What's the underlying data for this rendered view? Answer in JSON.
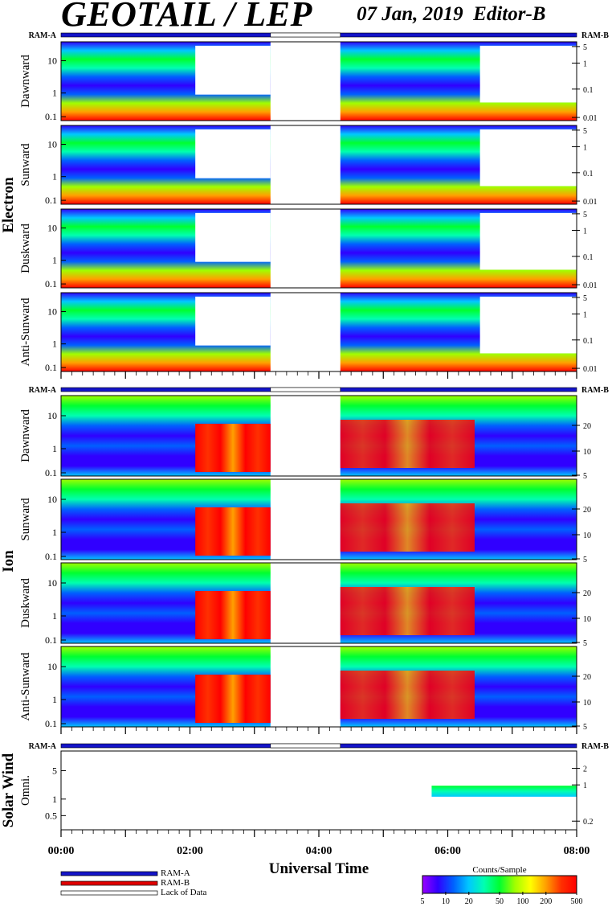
{
  "header": {
    "title": "GEOTAIL / LEP",
    "date": "07 Jan, 2019",
    "editor": "Editor-B"
  },
  "labels": {
    "ram_a": "RAM-A",
    "ram_b": "RAM-B",
    "lack_of_data": "Lack of Data",
    "colorbar_title": "Counts/Sample",
    "xlabel": "Universal Time"
  },
  "colors": {
    "ram_a": "#1414c8",
    "ram_b": "#e00000",
    "lack": "#ffffff",
    "colorscale": [
      "#9a00ff",
      "#3000ff",
      "#0060ff",
      "#00c8ff",
      "#00ffb0",
      "#00ff30",
      "#a0ff00",
      "#ffff00",
      "#ffa000",
      "#ff3000",
      "#ff0000"
    ]
  },
  "chart_data": {
    "type": "heatmap",
    "x_axis": {
      "range": [
        "00:00",
        "08:00"
      ],
      "ticks": [
        "00:00",
        "02:00",
        "04:00",
        "06:00",
        "08:00"
      ]
    },
    "color_scale": {
      "title": "Counts/Sample",
      "ticks": [
        "5",
        "10",
        "20",
        "50",
        "100",
        "200",
        "500"
      ],
      "range": [
        5,
        500
      ],
      "log": true
    },
    "data_gap": [
      "03:15",
      "04:20"
    ],
    "groups": [
      {
        "name": "Electron",
        "panels": [
          {
            "name": "Dawnward",
            "left_ticks": [
              "10",
              "1",
              "0.1"
            ],
            "right_ticks": [
              "5",
              "1",
              "0.1",
              "0.01"
            ]
          },
          {
            "name": "Sunward",
            "left_ticks": [
              "10",
              "1",
              "0.1"
            ],
            "right_ticks": [
              "5",
              "1",
              "0.1",
              "0.01"
            ]
          },
          {
            "name": "Duskward",
            "left_ticks": [
              "10",
              "1",
              "0.1"
            ],
            "right_ticks": [
              "5",
              "1",
              "0.1",
              "0.01"
            ]
          },
          {
            "name": "Anti-Sunward",
            "left_ticks": [
              "10",
              "1",
              "0.1"
            ],
            "right_ticks": [
              "5",
              "1",
              "0.1",
              "0.01"
            ]
          }
        ]
      },
      {
        "name": "Ion",
        "panels": [
          {
            "name": "Dawnward",
            "left_ticks": [
              "10",
              "1",
              "0.1"
            ],
            "right_ticks": [
              "20",
              "10",
              "5"
            ]
          },
          {
            "name": "Sunward",
            "left_ticks": [
              "10",
              "1",
              "0.1"
            ],
            "right_ticks": [
              "20",
              "10",
              "5"
            ]
          },
          {
            "name": "Duskward",
            "left_ticks": [
              "10",
              "1",
              "0.1"
            ],
            "right_ticks": [
              "20",
              "10",
              "5"
            ]
          },
          {
            "name": "Anti-Sunward",
            "left_ticks": [
              "10",
              "1",
              "0.1"
            ],
            "right_ticks": [
              "20",
              "10",
              "5"
            ]
          }
        ]
      },
      {
        "name": "Solar Wind",
        "panels": [
          {
            "name": "Omni.",
            "left_ticks": [
              "5",
              "1",
              "0.5"
            ],
            "right_ticks": [
              "2",
              "1",
              "0.2"
            ]
          }
        ]
      }
    ]
  }
}
